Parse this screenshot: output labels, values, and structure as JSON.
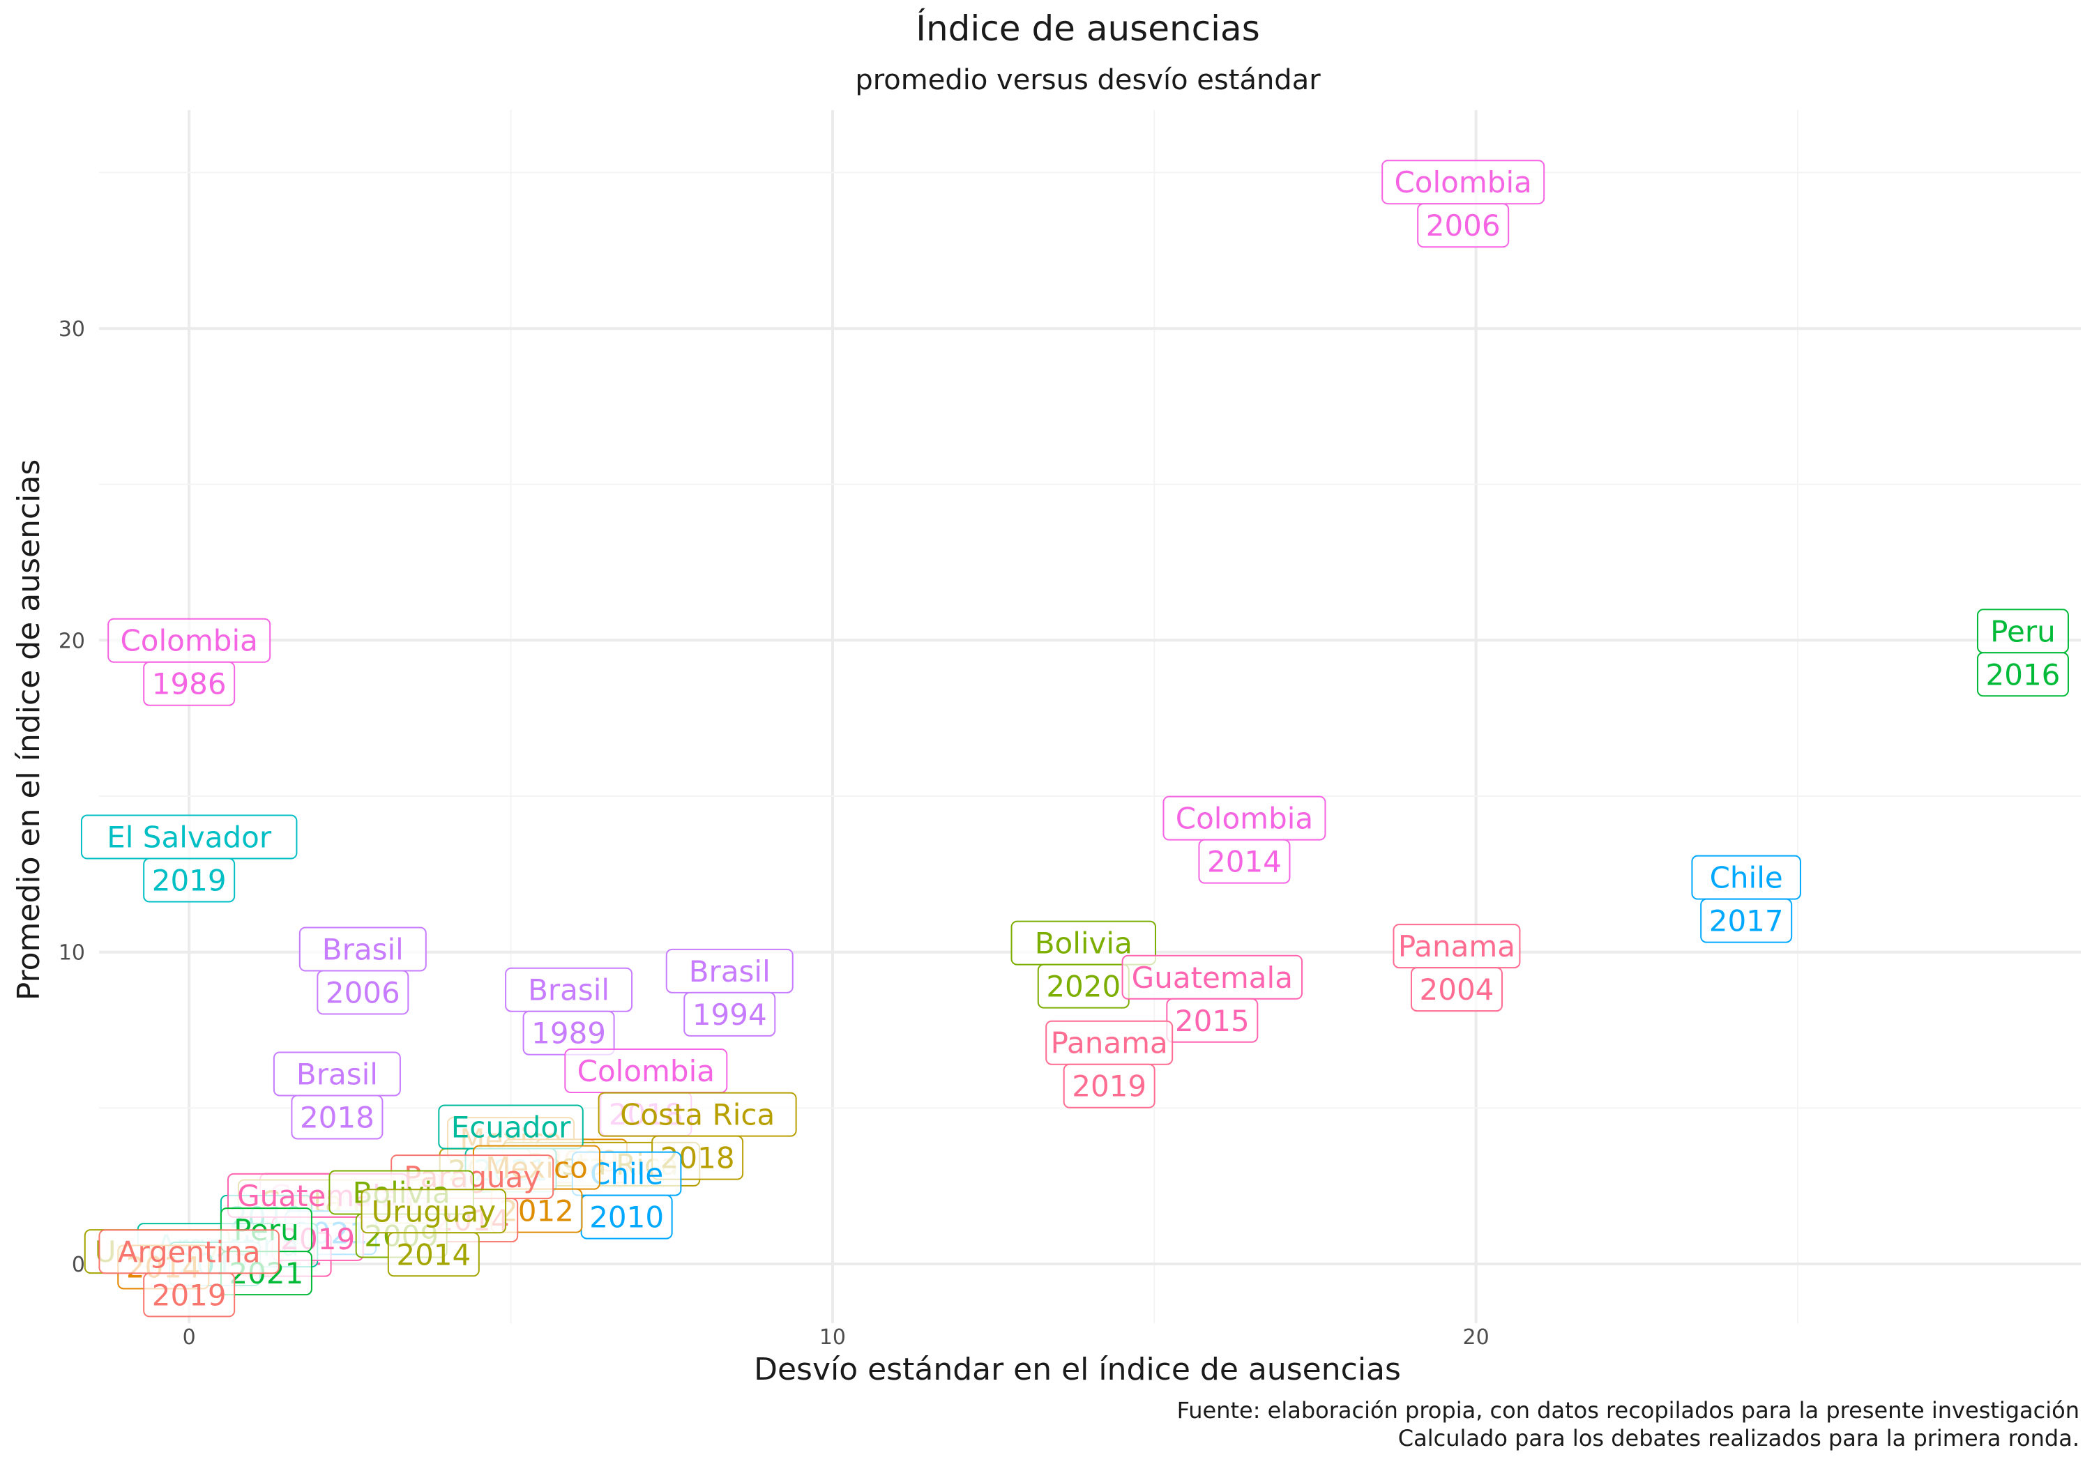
{
  "chart_data": {
    "type": "scatter",
    "title": "Índice de ausencias",
    "subtitle": "promedio versus desvío estándar",
    "xlabel": "Desvío estándar en el índice de ausencias",
    "ylabel": "Promedio en el índice de ausencias",
    "caption_lines": [
      "Fuente: elaboración propia, con datos recopilados para la presente investigación",
      "Calculado para los debates realizados para la primera ronda."
    ],
    "xlim": [
      -1.4,
      29.4
    ],
    "ylim": [
      -1.9,
      37.0
    ],
    "x_ticks": [
      0,
      10,
      20
    ],
    "y_ticks": [
      0,
      10,
      20,
      30
    ],
    "grid": true,
    "legend": "none",
    "country_colors": {
      "Argentina": "#F8766D",
      "Bolivia": "#7CAE00",
      "Brasil": "#C77CFF",
      "Chile": "#00A9FF",
      "Colombia": "#F564E3",
      "Costa Rica": "#B79F00",
      "Ecuador": "#00BA9E",
      "El Salvador": "#00BFC4",
      "Guatemala": "#FF64B0",
      "Mexico": "#DE8C00",
      "Panama": "#FF6C91",
      "Paraguay": "#F8766D",
      "Peru": "#00BA38",
      "Honduras": "#00C19F",
      "Republica Dominicana": "#E58700",
      "Uruguay": "#A3A500"
    },
    "points": [
      {
        "country": "Colombia",
        "year": "2006",
        "x": 19.8,
        "y": 34.0
      },
      {
        "country": "Peru",
        "year": "2016",
        "x": 28.5,
        "y": 19.6
      },
      {
        "country": "Colombia",
        "year": "1986",
        "x": 0.0,
        "y": 19.3
      },
      {
        "country": "El Salvador",
        "year": "2019",
        "x": 0.0,
        "y": 13.0
      },
      {
        "country": "Colombia",
        "year": "2014",
        "x": 16.4,
        "y": 13.6
      },
      {
        "country": "Chile",
        "year": "2017",
        "x": 24.2,
        "y": 11.7
      },
      {
        "country": "Bolivia",
        "year": "2020",
        "x": 13.9,
        "y": 9.6
      },
      {
        "country": "Panama",
        "year": "2004",
        "x": 19.7,
        "y": 9.5
      },
      {
        "country": "Guatemala",
        "year": "2015",
        "x": 15.9,
        "y": 8.5
      },
      {
        "country": "Brasil",
        "year": "2006",
        "x": 2.7,
        "y": 9.4
      },
      {
        "country": "Brasil",
        "year": "1994",
        "x": 8.4,
        "y": 8.7
      },
      {
        "country": "Brasil",
        "year": "1989",
        "x": 5.9,
        "y": 8.1
      },
      {
        "country": "Panama",
        "year": "2019",
        "x": 14.3,
        "y": 6.4
      },
      {
        "country": "Colombia",
        "year": "2018",
        "x": 7.1,
        "y": 5.5
      },
      {
        "country": "Brasil",
        "year": "2018",
        "x": 2.3,
        "y": 5.4
      },
      {
        "country": "Costa Rica",
        "year": "2018",
        "x": 7.9,
        "y": 4.1
      },
      {
        "country": "Ecuador",
        "year": "2021",
        "x": 5.0,
        "y": 3.7
      },
      {
        "country": "Chile",
        "year": "2010",
        "x": 6.8,
        "y": 2.2
      },
      {
        "country": "Mexico",
        "year": "2012",
        "x": 5.4,
        "y": 2.4
      },
      {
        "country": "Paraguay",
        "year": "2014",
        "x": 4.4,
        "y": 2.1
      },
      {
        "country": "Guatemala",
        "year": "2019",
        "x": 2.0,
        "y": 1.5
      },
      {
        "country": "Bolivia",
        "year": "2009",
        "x": 3.3,
        "y": 1.6
      },
      {
        "country": "Uruguay",
        "year": "2014",
        "x": 3.8,
        "y": 1.0
      },
      {
        "country": "Peru",
        "year": "2021",
        "x": 1.2,
        "y": 0.4
      },
      {
        "country": "Argentina",
        "year": "2019",
        "x": 0.0,
        "y": -0.3
      }
    ],
    "overlapping_labels": [
      {
        "text": "Mexico",
        "country": "Mexico",
        "x": 5.0,
        "y": 4.0
      },
      {
        "text": "2018",
        "country": "Mexico",
        "x": 5.6,
        "y": 3.3
      },
      {
        "text": "2009",
        "country": "Mexico",
        "x": 6.1,
        "y": 3.3
      },
      {
        "text": "Costa Rica",
        "country": "Costa Rica",
        "x": 6.4,
        "y": 3.2
      },
      {
        "text": "2009",
        "country": "Costa Rica",
        "x": 4.6,
        "y": 3.0
      },
      {
        "text": "Guatemala",
        "country": "Guatemala",
        "x": 2.5,
        "y": 2.2
      },
      {
        "text": "Costa Rica",
        "country": "Costa Rica",
        "x": 2.3,
        "y": 2.0
      },
      {
        "text": "2019",
        "country": "Honduras",
        "x": 1.2,
        "y": 1.5
      },
      {
        "text": "2021",
        "country": "Chile",
        "x": 2.2,
        "y": 1.0
      },
      {
        "text": "2011",
        "country": "Guatemala",
        "x": 1.5,
        "y": 0.3
      },
      {
        "text": "Argentina",
        "country": "Honduras",
        "x": 0.6,
        "y": 0.6
      },
      {
        "text": "Uruguay",
        "country": "Uruguay",
        "x": -0.5,
        "y": 0.4
      },
      {
        "text": "2017",
        "country": "Honduras",
        "x": 0.4,
        "y": 0.0
      },
      {
        "text": "2014",
        "country": "Republica Dominicana",
        "x": -0.4,
        "y": -0.1
      }
    ]
  }
}
